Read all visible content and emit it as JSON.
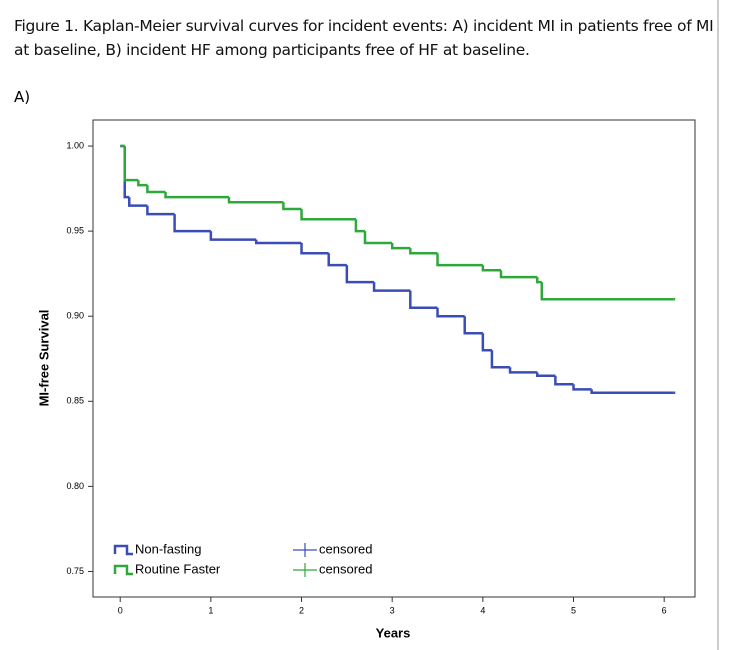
{
  "chart_data": {
    "type": "line",
    "step": true,
    "title": "Figure 1. Kaplan-Meier survival curves for incident events: A) incident MI in patients free of MI at baseline, B) incident HF among participants free of HF at baseline.",
    "panel_label": "A)",
    "x_label": "Years",
    "y_label": "MI-free Survival",
    "xlim": [
      -0.3,
      6.34
    ],
    "ylim": [
      0.735,
      1.0153
    ],
    "xticks": [
      0,
      1,
      2,
      3,
      4,
      5,
      6
    ],
    "yticks": [
      {
        "value": 1,
        "label": "1.00"
      },
      0.95,
      {
        "value": 0.9,
        "label": "0.90"
      },
      0.85,
      {
        "value": 0.8,
        "label": "0.80"
      },
      0.75
    ],
    "grid": false,
    "legend": "lower-left",
    "series": [
      {
        "name": "Non-fasting",
        "color": "#3a4db6",
        "censored_label": "censored",
        "x": [
          0,
          0.05,
          0.1,
          0.3,
          0.6,
          1.0,
          1.5,
          2.0,
          2.3,
          2.5,
          2.8,
          3.2,
          3.5,
          3.8,
          4.0,
          4.1,
          4.3,
          4.6,
          4.8,
          5.0,
          5.2,
          6.1
        ],
        "values": [
          1.0,
          0.97,
          0.965,
          0.96,
          0.95,
          0.945,
          0.943,
          0.937,
          0.93,
          0.92,
          0.915,
          0.905,
          0.9,
          0.89,
          0.88,
          0.87,
          0.867,
          0.865,
          0.86,
          0.857,
          0.855,
          0.855
        ]
      },
      {
        "name": "Routine Faster",
        "color": "#2ea83a",
        "censored_label": "censored",
        "x": [
          0,
          0.05,
          0.2,
          0.3,
          0.5,
          1.2,
          1.8,
          2.0,
          2.6,
          2.7,
          3.0,
          3.2,
          3.5,
          4.0,
          4.2,
          4.6,
          4.65,
          6.1
        ],
        "values": [
          1.0,
          0.98,
          0.977,
          0.973,
          0.97,
          0.967,
          0.963,
          0.957,
          0.95,
          0.943,
          0.94,
          0.937,
          0.93,
          0.927,
          0.923,
          0.92,
          0.91,
          0.91
        ]
      }
    ]
  }
}
